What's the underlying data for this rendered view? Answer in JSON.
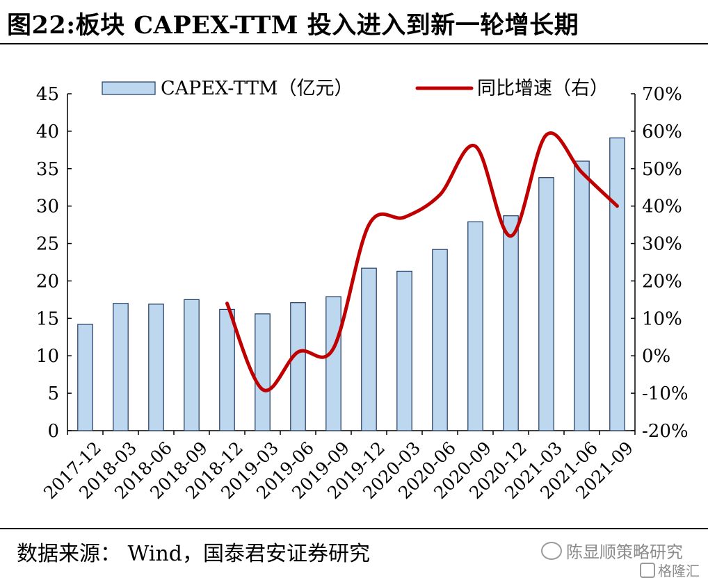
{
  "title": "图22:板块 CAPEX-TTM 投入进入到新一轮增长期",
  "source": "数据来源：  Wind，国泰君安证券研究",
  "watermark": "陈显顺策略研究",
  "brand": "格隆汇",
  "chart_data": {
    "type": "bar+line",
    "categories": [
      "2017-12",
      "2018-03",
      "2018-06",
      "2018-09",
      "2018-12",
      "2019-03",
      "2019-06",
      "2019-09",
      "2019-12",
      "2020-03",
      "2020-06",
      "2020-09",
      "2020-12",
      "2021-03",
      "2021-06",
      "2021-09"
    ],
    "series": [
      {
        "name": "CAPEX-TTM（亿元）",
        "type": "bar",
        "axis": "left",
        "values": [
          14.2,
          17.0,
          16.9,
          17.5,
          16.2,
          15.6,
          17.1,
          17.9,
          21.7,
          21.3,
          24.2,
          27.9,
          28.7,
          33.8,
          36.0,
          39.1
        ]
      },
      {
        "name": "同比增速（右）",
        "type": "line",
        "axis": "right",
        "unit": "%",
        "values": [
          null,
          null,
          null,
          null,
          14,
          -9,
          1,
          2,
          35,
          37,
          43,
          56,
          32,
          59,
          49,
          40
        ]
      }
    ],
    "y_left": {
      "min": 0,
      "max": 45,
      "ticks": [
        0,
        5,
        10,
        15,
        20,
        25,
        30,
        35,
        40,
        45
      ]
    },
    "y_right": {
      "min": -20,
      "max": 70,
      "ticks": [
        "-20%",
        "-10%",
        "0%",
        "10%",
        "20%",
        "30%",
        "40%",
        "50%",
        "60%",
        "70%"
      ]
    },
    "legend_position": "top",
    "grid": false,
    "colors": {
      "bar_fill": "#bdd7ee",
      "bar_stroke": "#1f3864",
      "line": "#c00000"
    }
  }
}
